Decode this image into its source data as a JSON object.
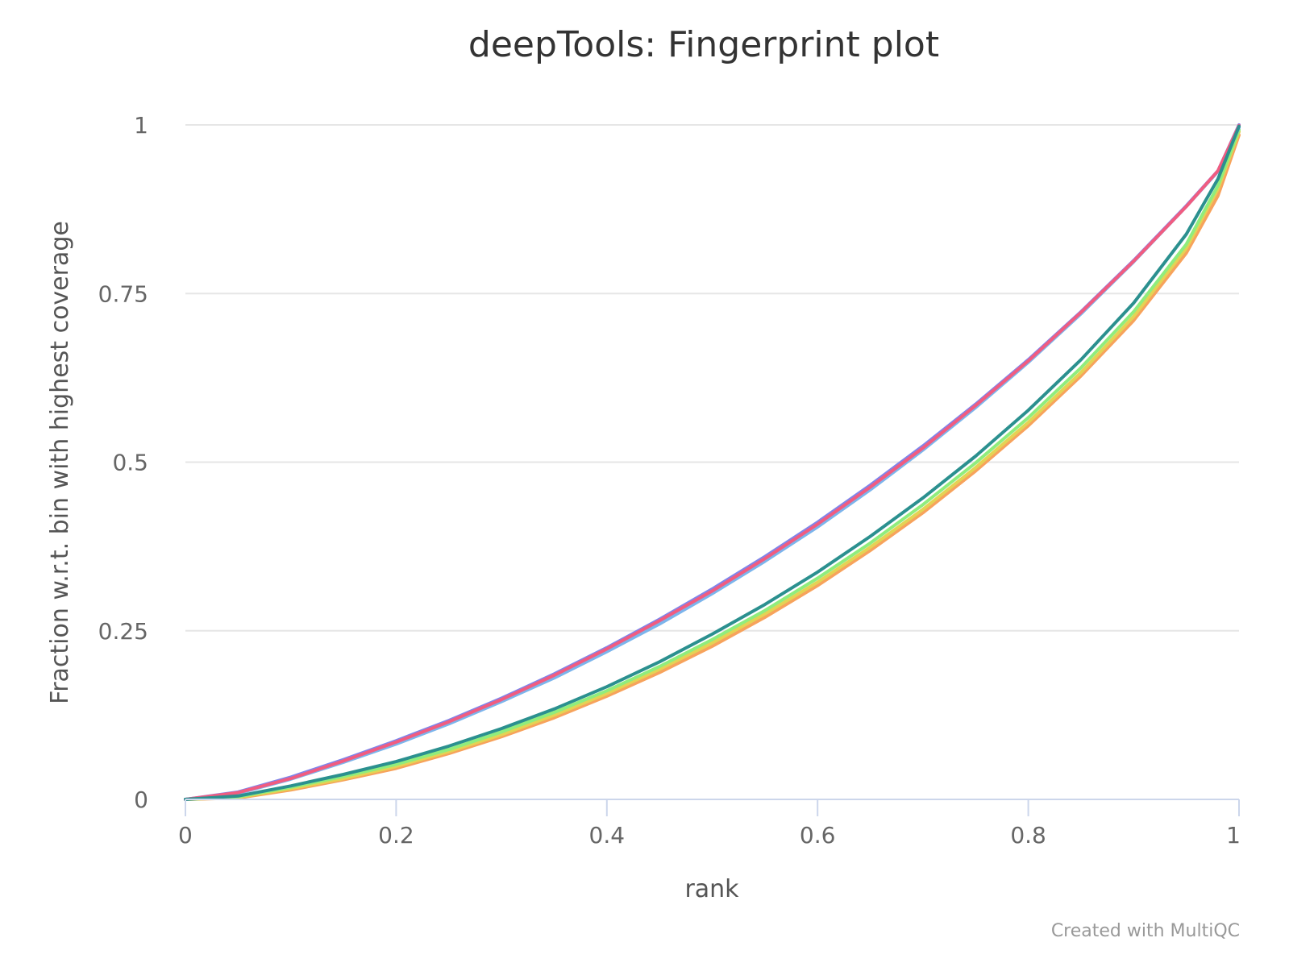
{
  "chart_data": {
    "type": "line",
    "title": "deepTools: Fingerprint plot",
    "xlabel": "rank",
    "ylabel": "Fraction w.r.t. bin with highest coverage",
    "credit": "Created with MultiQC",
    "xlim": [
      0,
      1
    ],
    "ylim": [
      0,
      1
    ],
    "xticks": [
      {
        "value": 0,
        "label": "0"
      },
      {
        "value": 0.2,
        "label": "0.2"
      },
      {
        "value": 0.4,
        "label": "0.4"
      },
      {
        "value": 0.6,
        "label": "0.6"
      },
      {
        "value": 0.8,
        "label": "0.8"
      },
      {
        "value": 1,
        "label": "1"
      }
    ],
    "yticks": [
      {
        "value": 0,
        "label": "0"
      },
      {
        "value": 0.25,
        "label": "0.25"
      },
      {
        "value": 0.5,
        "label": "0.5"
      },
      {
        "value": 0.75,
        "label": "0.75"
      },
      {
        "value": 1,
        "label": "1"
      }
    ],
    "grid": true,
    "x": [
      0,
      0.05,
      0.1,
      0.15,
      0.2,
      0.25,
      0.3,
      0.35,
      0.4,
      0.45,
      0.5,
      0.55,
      0.6,
      0.65,
      0.7,
      0.75,
      0.8,
      0.85,
      0.9,
      0.95,
      0.98,
      1.0
    ],
    "series": [
      {
        "color": "#7cb5ec",
        "values": [
          0,
          0.009,
          0.03,
          0.055,
          0.082,
          0.112,
          0.145,
          0.18,
          0.219,
          0.26,
          0.305,
          0.353,
          0.404,
          0.459,
          0.518,
          0.581,
          0.648,
          0.72,
          0.797,
          0.879,
          0.931,
          0.996
        ]
      },
      {
        "color": "#8085e9",
        "values": [
          0,
          0.011,
          0.033,
          0.059,
          0.087,
          0.117,
          0.15,
          0.186,
          0.225,
          0.267,
          0.312,
          0.36,
          0.411,
          0.466,
          0.524,
          0.586,
          0.652,
          0.723,
          0.799,
          0.88,
          0.932,
          1.0
        ]
      },
      {
        "color": "#f15c80",
        "values": [
          0,
          0.01,
          0.031,
          0.057,
          0.085,
          0.115,
          0.148,
          0.184,
          0.223,
          0.265,
          0.309,
          0.357,
          0.408,
          0.463,
          0.521,
          0.584,
          0.65,
          0.722,
          0.798,
          0.879,
          0.932,
          0.999
        ]
      },
      {
        "color": "#f7a35c",
        "values": [
          0,
          0.002,
          0.014,
          0.029,
          0.046,
          0.068,
          0.093,
          0.121,
          0.153,
          0.188,
          0.227,
          0.27,
          0.317,
          0.369,
          0.425,
          0.487,
          0.554,
          0.628,
          0.71,
          0.81,
          0.895,
          0.985
        ]
      },
      {
        "color": "#e4d354",
        "values": [
          0,
          0.003,
          0.016,
          0.031,
          0.049,
          0.071,
          0.096,
          0.125,
          0.157,
          0.193,
          0.232,
          0.275,
          0.322,
          0.374,
          0.43,
          0.492,
          0.559,
          0.633,
          0.716,
          0.817,
          0.905,
          0.99
        ]
      },
      {
        "color": "#90ed7d",
        "values": [
          0,
          0.004,
          0.018,
          0.034,
          0.052,
          0.074,
          0.1,
          0.129,
          0.161,
          0.197,
          0.237,
          0.28,
          0.328,
          0.38,
          0.437,
          0.499,
          0.566,
          0.64,
          0.723,
          0.823,
          0.91,
          0.993
        ]
      },
      {
        "color": "#2b908f",
        "values": [
          0,
          0.005,
          0.02,
          0.037,
          0.056,
          0.079,
          0.105,
          0.134,
          0.167,
          0.204,
          0.245,
          0.289,
          0.337,
          0.39,
          0.447,
          0.509,
          0.577,
          0.652,
          0.736,
          0.838,
          0.92,
          0.998
        ]
      }
    ]
  }
}
